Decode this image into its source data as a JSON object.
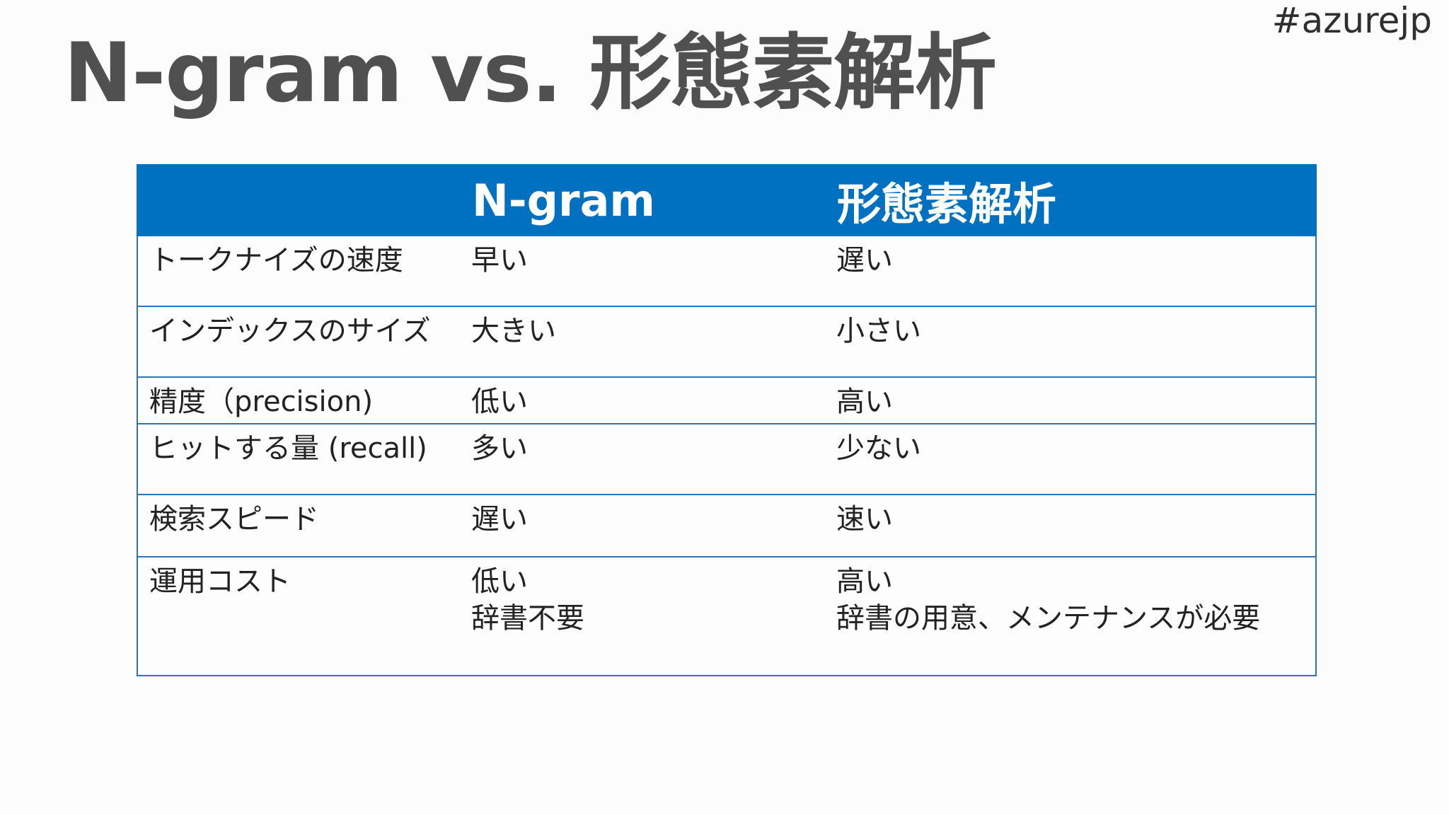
{
  "hashtag": "#azurejp",
  "title": "N-gram vs. 形態素解析",
  "table": {
    "headers": [
      "",
      "N-gram",
      "形態素解析"
    ],
    "rows": [
      {
        "label": "トークナイズの速度",
        "ngram": [
          "早い"
        ],
        "morph": [
          "遅い"
        ]
      },
      {
        "label": "インデックスのサイズ",
        "ngram": [
          "大きい"
        ],
        "morph": [
          "小さい"
        ]
      },
      {
        "label": "精度（precision)",
        "ngram": [
          "低い"
        ],
        "morph": [
          "高い"
        ]
      },
      {
        "label": "ヒットする量 (recall)",
        "ngram": [
          "多い"
        ],
        "morph": [
          "少ない"
        ]
      },
      {
        "label": "検索スピード",
        "ngram": [
          "遅い"
        ],
        "morph": [
          "速い"
        ]
      },
      {
        "label": "運用コスト",
        "ngram": [
          "低い",
          "辞書不要"
        ],
        "morph": [
          "高い",
          "辞書の用意、メンテナンスが必要"
        ]
      }
    ]
  }
}
